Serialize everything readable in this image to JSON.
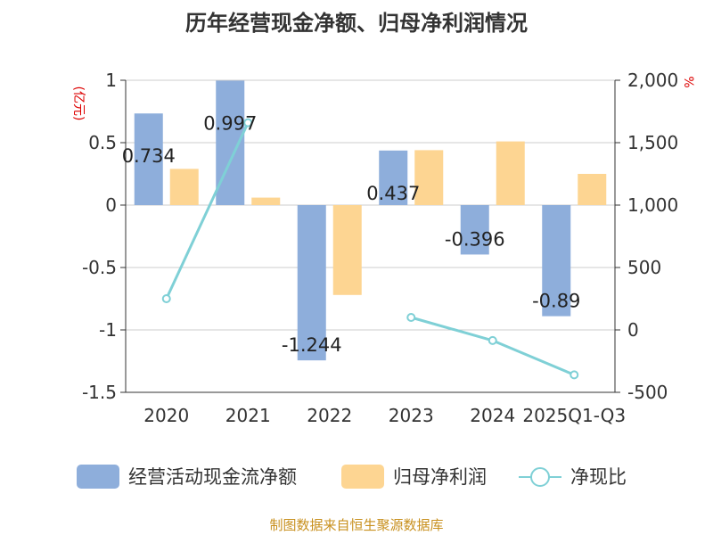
{
  "chart_data": {
    "type": "bar",
    "title": "历年经营现金净额、归母净利润情况",
    "categories": [
      "2020",
      "2021",
      "2022",
      "2023",
      "2024",
      "2025Q1-Q3"
    ],
    "left_axis": {
      "unit_label": "(亿元)",
      "ticks": [
        "1",
        "0.5",
        "0",
        "-0.5",
        "-1",
        "-1.5"
      ],
      "tick_values": [
        1,
        0.5,
        0,
        -0.5,
        -1,
        -1.5
      ],
      "ylim": [
        -1.5,
        1
      ]
    },
    "right_axis": {
      "unit_label": "%",
      "ticks": [
        "2,000",
        "1,500",
        "1,000",
        "500",
        "0",
        "-500"
      ],
      "tick_values": [
        2000,
        1500,
        1000,
        500,
        0,
        -500
      ],
      "ylim": [
        -500,
        2000
      ]
    },
    "series": [
      {
        "name": "经营活动现金流净额",
        "kind": "bar",
        "axis": "left",
        "color": "#8eaedb",
        "values": [
          0.734,
          0.997,
          -1.244,
          0.437,
          -0.396,
          -0.89
        ],
        "labels": [
          "0.734",
          "0.997",
          "-1.244",
          "0.437",
          "-0.396",
          "-0.89"
        ]
      },
      {
        "name": "归母净利润",
        "kind": "bar",
        "axis": "left",
        "color": "#fdd592",
        "values": [
          0.29,
          0.06,
          -0.72,
          0.44,
          0.51,
          0.25
        ]
      },
      {
        "name": "净现比",
        "kind": "line",
        "axis": "right",
        "color": "#7fd0d6",
        "values": [
          250,
          1660,
          null,
          100,
          -85,
          -360
        ]
      }
    ]
  },
  "legend": {
    "items": [
      {
        "label": "经营活动现金流净额"
      },
      {
        "label": "归母净利润"
      },
      {
        "label": "净现比"
      }
    ]
  },
  "source": "制图数据来自恒生聚源数据库"
}
